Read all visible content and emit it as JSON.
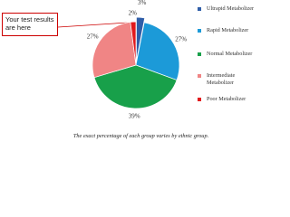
{
  "chart_data": {
    "type": "pie",
    "categories": [
      "Ultrapid Metabolizer",
      "Rapid Metabolizer",
      "Normal Metabolizer",
      "Intermediate Metabolizer",
      "Poor Metabolizer"
    ],
    "values": [
      3,
      27,
      39,
      27,
      2
    ],
    "value_labels": [
      "3%",
      "27%",
      "39%",
      "27%",
      "2%"
    ],
    "colors": [
      "#2f5ea8",
      "#1c9ad8",
      "#18a04a",
      "#f08585",
      "#e2191c"
    ],
    "annotation": "Your test results are here",
    "caption": "The exact percentage of each group varies by ethnic group."
  }
}
